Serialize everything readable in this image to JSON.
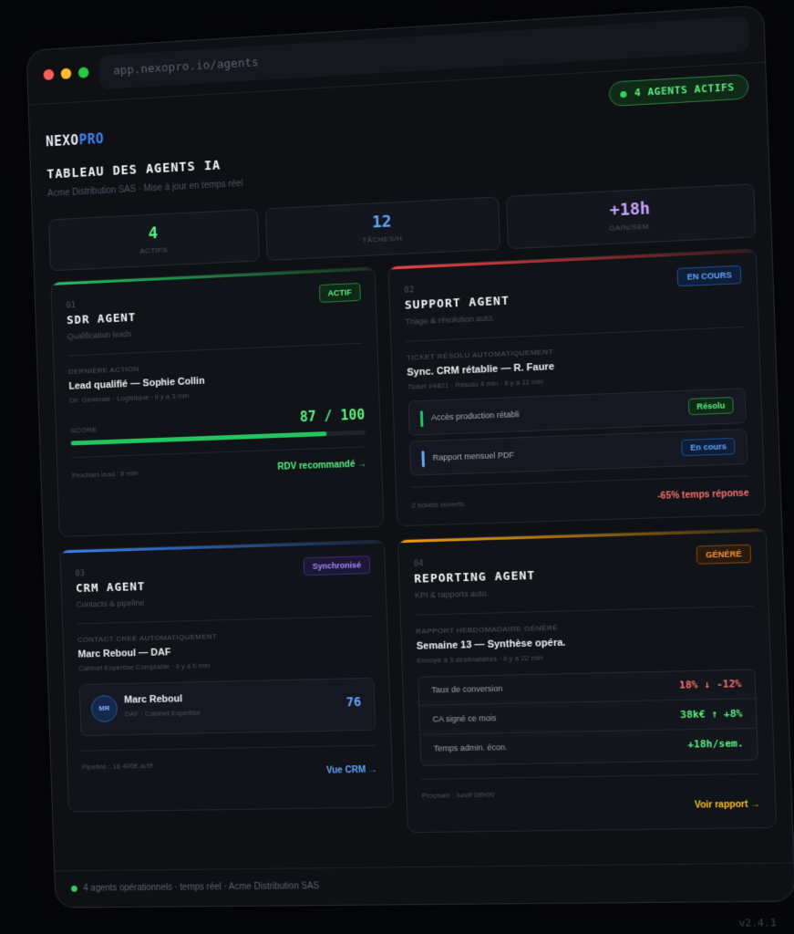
{
  "browser": {
    "url": "app.nexopro.io/agents",
    "active_pill": "4 AGENTS ACTIFS"
  },
  "brand": {
    "part1": "NEXO",
    "part2": "PRO",
    "accent": "#3b82f6"
  },
  "page": {
    "title": "TABLEAU DES AGENTS IA",
    "subtitle": "Acme Distribution SAS · Mise à jour en temps réel"
  },
  "stats": [
    {
      "value": "4",
      "label": "ACTIFS",
      "color": "#5cf083"
    },
    {
      "value": "12",
      "label": "TÂCHES/H",
      "color": "#60a5fa"
    },
    {
      "value": "+18h",
      "label": "GAIN/SEM.",
      "color": "#c4a3ff"
    }
  ],
  "sdr": {
    "num": "01",
    "title": "SDR AGENT",
    "subtitle": "Qualification leads",
    "badge": "ACTIF",
    "action_label": "DERNIÈRE ACTION",
    "action": "Lead qualifié — Sophie Collin",
    "action_meta": "Dir. Générale · Logistique · il y a 3 min",
    "score_label": "SCORE",
    "score": "87 / 100",
    "score_fraction": 0.87,
    "footer": "Prochain lead : 8 min",
    "cta": "RDV recommandé →"
  },
  "support": {
    "num": "02",
    "title": "SUPPORT AGENT",
    "subtitle": "Triage & résolution auto.",
    "badge": "EN COURS",
    "ticket_label": "TICKET RÉSOLU AUTOMATIQUEMENT",
    "ticket": "Sync. CRM rétablie — R. Faure",
    "ticket_meta": "Ticket #4821 · Résolu 4 min · il y a 11 min",
    "rows": [
      {
        "text": "Accès production rétabli",
        "tag": "Résolu"
      },
      {
        "text": "Rapport mensuel PDF",
        "tag": "En cours"
      }
    ],
    "footer": "2 tickets ouverts",
    "cta": "-65% temps réponse"
  },
  "crm": {
    "num": "03",
    "title": "CRM AGENT",
    "subtitle": "Contacts & pipeline",
    "badge": "Synchronisé",
    "contact_label": "CONTACT CRÉÉ AUTOMATIQUEMENT",
    "contact": "Marc Reboul — DAF",
    "contact_meta": "Cabinet Expertise Comptable · il y a 6 min",
    "initials": "MR",
    "person_name": "Marc Reboul",
    "person_company": "DAF · Cabinet Expertise",
    "person_score": "76",
    "footer": "Pipeline : 18 400€ actif",
    "cta": "Vue CRM →"
  },
  "reporting": {
    "num": "04",
    "title": "REPORTING AGENT",
    "subtitle": "KPI & rapports auto.",
    "badge": "GÉNÉRÉ",
    "report_label": "RAPPORT HEBDOMADAIRE GÉNÉRÉ",
    "report": "Semaine 13 — Synthèse opéra.",
    "report_meta": "Envoyé à 3 destinataires · il y a 22 min",
    "kpis": [
      {
        "label": "Taux de conversion",
        "value": "18% ↓ -12%"
      },
      {
        "label": "CA signé ce mois",
        "value": "38k€ ↑ +8%"
      },
      {
        "label": "Temps admin. écon.",
        "value": "+18h/sem."
      }
    ],
    "footer": "Prochain : lundi 08h00",
    "cta": "Voir rapport →"
  },
  "status": {
    "text": "4 agents opérationnels · temps réel · Acme Distribution SAS",
    "version": "v2.4.1"
  }
}
